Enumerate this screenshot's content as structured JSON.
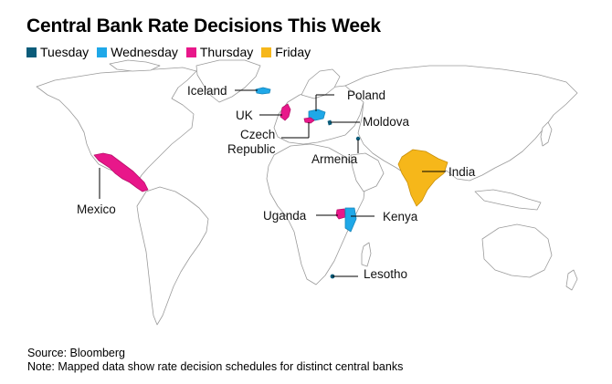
{
  "title": "Central Bank Rate Decisions This Week",
  "legend": [
    {
      "label": "Tuesday",
      "color": "#0b5c7a"
    },
    {
      "label": "Wednesday",
      "color": "#1fa8e8"
    },
    {
      "label": "Thursday",
      "color": "#e8178a"
    },
    {
      "label": "Friday",
      "color": "#f6b71a"
    }
  ],
  "map": {
    "land_fill": "#ffffff",
    "border_color": "#9a9a9a",
    "countries": [
      {
        "name": "Iceland",
        "day": "Wednesday"
      },
      {
        "name": "Poland",
        "day": "Wednesday"
      },
      {
        "name": "UK",
        "day": "Thursday"
      },
      {
        "name": "Moldova",
        "day": "Tuesday"
      },
      {
        "name": "Czech Republic",
        "day": "Thursday"
      },
      {
        "name": "Armenia",
        "day": "Tuesday"
      },
      {
        "name": "India",
        "day": "Friday"
      },
      {
        "name": "Mexico",
        "day": "Thursday"
      },
      {
        "name": "Uganda",
        "day": "Thursday"
      },
      {
        "name": "Kenya",
        "day": "Wednesday"
      },
      {
        "name": "Lesotho",
        "day": "Tuesday"
      }
    ],
    "labels": {
      "iceland": "Iceland",
      "poland": "Poland",
      "uk": "UK",
      "moldova": "Moldova",
      "czech_line1": "Czech",
      "czech_line2": "Republic",
      "armenia": "Armenia",
      "india": "India",
      "mexico": "Mexico",
      "uganda": "Uganda",
      "kenya": "Kenya",
      "lesotho": "Lesotho"
    }
  },
  "footer": {
    "source": "Source: Bloomberg",
    "note": "Note: Mapped data show rate decision schedules for distinct central banks"
  }
}
